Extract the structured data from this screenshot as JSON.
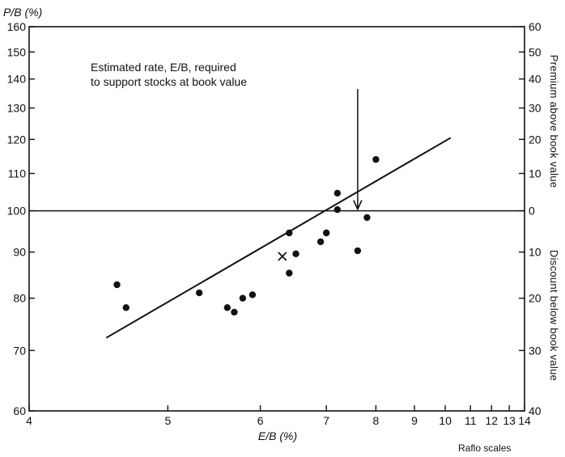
{
  "chart_data": {
    "type": "scatter",
    "ylabel": "P/B (%)",
    "xlabel": "E/B (%)",
    "right_axis_top_label": "Premium above book value",
    "right_axis_bottom_label": "Discount below book value",
    "annotation_line1": "Estimated rate, E/B, required",
    "annotation_line2": "to support stocks at book value",
    "footer": "Raflo scales",
    "x_scale": "reciprocal",
    "y_scale": "log",
    "xlim": [
      4,
      14
    ],
    "ylim": [
      60,
      160
    ],
    "x_ticks": [
      4,
      5,
      6,
      7,
      8,
      9,
      10,
      11,
      12,
      13,
      14
    ],
    "y_ticks": [
      60,
      70,
      80,
      90,
      100,
      110,
      120,
      130,
      140,
      150,
      160
    ],
    "right_ticks": [
      {
        "label": "60",
        "p": 160
      },
      {
        "label": "50",
        "p": 150
      },
      {
        "label": "40",
        "p": 140
      },
      {
        "label": "30",
        "p": 130
      },
      {
        "label": "20",
        "p": 120
      },
      {
        "label": "10",
        "p": 110
      },
      {
        "label": "0",
        "p": 100
      },
      {
        "label": "10",
        "p": 90
      },
      {
        "label": "20",
        "p": 80
      },
      {
        "label": "30",
        "p": 70
      },
      {
        "label": "40",
        "p": 60
      }
    ],
    "reference_y": 100,
    "annotated_x": 7.6,
    "points": [
      {
        "x": 4.58,
        "y": 82.8
      },
      {
        "x": 4.65,
        "y": 78.1
      },
      {
        "x": 5.3,
        "y": 81.1
      },
      {
        "x": 5.6,
        "y": 78.1
      },
      {
        "x": 5.68,
        "y": 77.2
      },
      {
        "x": 5.78,
        "y": 80.0
      },
      {
        "x": 5.9,
        "y": 80.7
      },
      {
        "x": 6.4,
        "y": 94.5
      },
      {
        "x": 6.4,
        "y": 85.3
      },
      {
        "x": 6.5,
        "y": 89.6
      },
      {
        "x": 6.9,
        "y": 92.4
      },
      {
        "x": 7.0,
        "y": 94.5
      },
      {
        "x": 7.2,
        "y": 104.6
      },
      {
        "x": 7.2,
        "y": 100.3
      },
      {
        "x": 7.6,
        "y": 90.3
      },
      {
        "x": 7.8,
        "y": 98.3
      },
      {
        "x": 8.0,
        "y": 114.0
      }
    ],
    "cross_point": {
      "x": 6.3,
      "y": 89.0
    },
    "fit_line": [
      {
        "x": 4.5,
        "y": 72.3
      },
      {
        "x": 10.2,
        "y": 120.5
      }
    ]
  }
}
